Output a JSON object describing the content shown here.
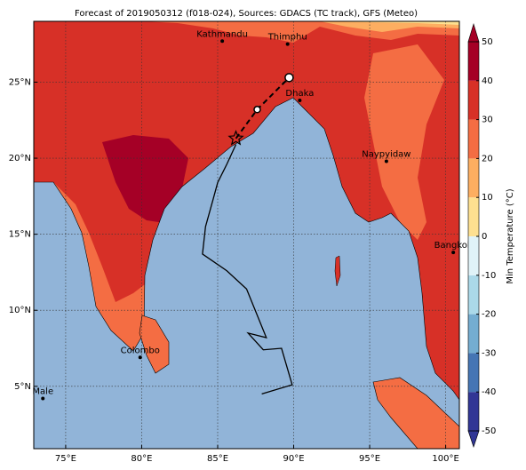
{
  "map": {
    "title": "Forecast of 2019050312 (f018-024), Sources: GDACS (TC track), GFS (Meteo)",
    "xlim": [
      72.9,
      100.9
    ],
    "ylim": [
      0.9,
      29.0
    ],
    "xticks": [
      {
        "value": 75,
        "label": "75°E"
      },
      {
        "value": 80,
        "label": "80°E"
      },
      {
        "value": 85,
        "label": "85°E"
      },
      {
        "value": 90,
        "label": "90°E"
      },
      {
        "value": 95,
        "label": "95°E"
      },
      {
        "value": 100,
        "label": "100°E"
      }
    ],
    "yticks": [
      {
        "value": 5,
        "label": "5°N"
      },
      {
        "value": 10,
        "label": "10°N"
      },
      {
        "value": 15,
        "label": "15°N"
      },
      {
        "value": 20,
        "label": "20°N"
      },
      {
        "value": 25,
        "label": "25°N"
      }
    ],
    "cities": [
      {
        "name": "Kathmandu",
        "lon": 85.3,
        "lat": 27.7
      },
      {
        "name": "Thimphu",
        "lon": 89.6,
        "lat": 27.5
      },
      {
        "name": "Dhaka",
        "lon": 90.4,
        "lat": 23.8
      },
      {
        "name": "Naypyidaw",
        "lon": 96.1,
        "lat": 19.8
      },
      {
        "name": "Bangkok",
        "lon": 100.5,
        "lat": 13.8
      },
      {
        "name": "Colombo",
        "lon": 79.9,
        "lat": 6.9
      },
      {
        "name": "Male",
        "lon": 73.5,
        "lat": 4.2
      }
    ],
    "track": {
      "lon": [
        87.9,
        89.9,
        89.2,
        88.0,
        87.0,
        88.2,
        86.9,
        85.6,
        84.0,
        84.2,
        84.7,
        85.0,
        85.6,
        86.2
      ],
      "lat": [
        4.5,
        5.1,
        7.5,
        7.4,
        8.5,
        8.2,
        11.4,
        12.6,
        13.7,
        15.5,
        17.3,
        18.4,
        19.6,
        20.9
      ]
    },
    "forecast": {
      "lon": [
        86.2,
        87.6,
        89.7
      ],
      "lat": [
        21.3,
        23.2,
        25.3
      ]
    },
    "colorbar": {
      "label": "Min Temperature (°C)",
      "ticks": [
        -50,
        -40,
        -30,
        -20,
        -10,
        0,
        10,
        20,
        30,
        40,
        50
      ],
      "colors": [
        "#313695",
        "#4575b4",
        "#74add1",
        "#abd9e9",
        "#e0f3f8",
        "#fee090",
        "#fdae61",
        "#f46d43",
        "#d73027",
        "#a50026"
      ]
    }
  }
}
